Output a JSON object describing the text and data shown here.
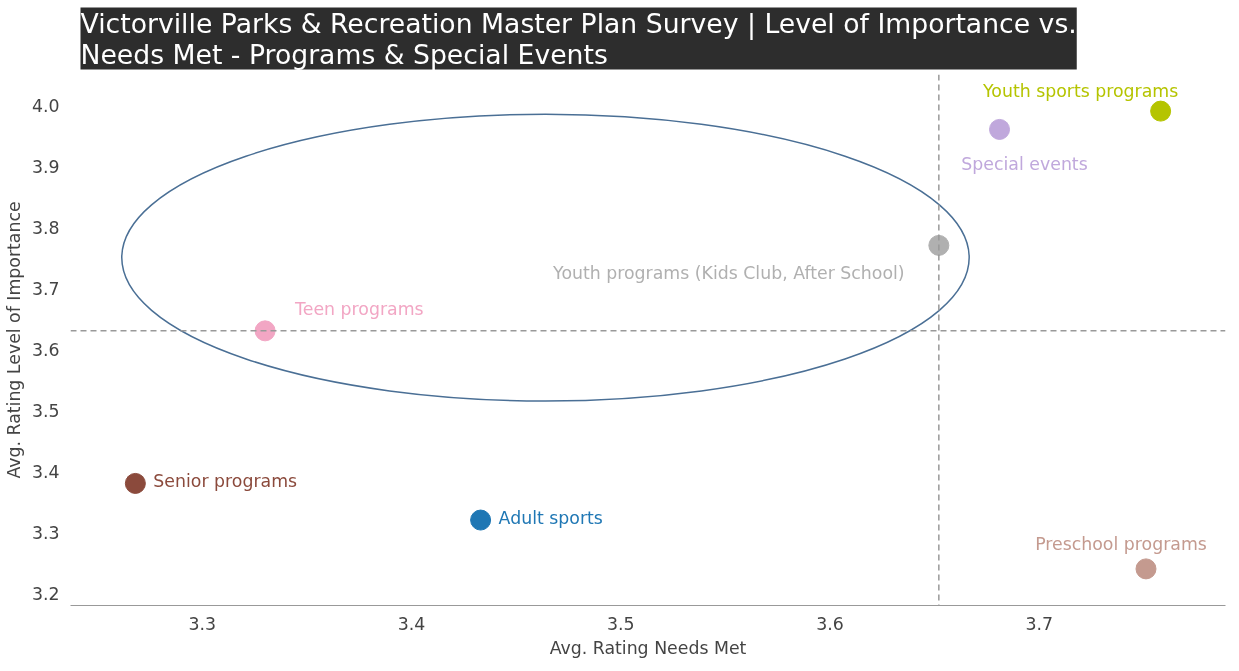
{
  "chart_data": {
    "type": "scatter",
    "title": "Victorville Parks & Recreation Master Plan Survey | Level of Importance vs. Needs Met - Programs & Special Events",
    "xlabel": "Avg. Rating Needs Met",
    "ylabel": "Avg. Rating Level of Importance",
    "series": [
      {
        "name": "Youth sports programs",
        "color": "#b5c400",
        "x": [
          3.758
        ],
        "values": [
          3.99
        ]
      },
      {
        "name": "Special events",
        "color": "#c0a8dc",
        "x": [
          3.681
        ],
        "values": [
          3.96
        ]
      },
      {
        "name": "Youth programs (Kids Club, After School)",
        "color": "#b0b0b0",
        "x": [
          3.652
        ],
        "values": [
          3.77
        ]
      },
      {
        "name": "Teen programs",
        "color": "#f2a6c4",
        "x": [
          3.33
        ],
        "values": [
          3.63
        ]
      },
      {
        "name": "Senior programs",
        "color": "#8b4a3c",
        "x": [
          3.268
        ],
        "values": [
          3.38
        ]
      },
      {
        "name": "Adult sports",
        "color": "#1f77b4",
        "x": [
          3.433
        ],
        "values": [
          3.32
        ]
      },
      {
        "name": "Preschool programs",
        "color": "#c49a8f",
        "x": [
          3.751
        ],
        "values": [
          3.24
        ]
      }
    ],
    "xlim": [
      3.237,
      3.789
    ],
    "ylim": [
      3.18,
      4.05
    ],
    "xticks": [
      3.3,
      3.4,
      3.5,
      3.6,
      3.7
    ],
    "yticks": [
      3.2,
      3.3,
      3.4,
      3.5,
      3.6,
      3.7,
      3.8,
      3.9,
      {
        "value": 4,
        "label": "4.0"
      }
    ],
    "ref_lines": [
      {
        "axis": "y",
        "value": 3.63,
        "color": "#999999",
        "line_style": "dashed"
      },
      {
        "axis": "x",
        "value": 3.652,
        "color": "#999999",
        "line_style": "dashed"
      }
    ],
    "marker": "circle",
    "grid": false
  }
}
